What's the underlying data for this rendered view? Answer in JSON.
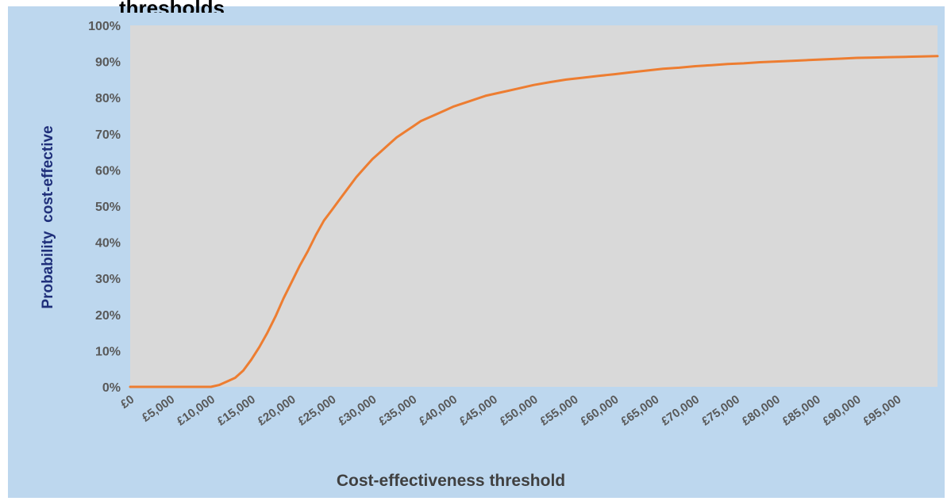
{
  "chart_data": {
    "type": "line",
    "title": "thresholds",
    "xlabel": "Cost-effectiveness threshold",
    "ylabel": "Probability  cost-effective",
    "xlim": [
      0,
      100000
    ],
    "ylim": [
      0,
      100
    ],
    "y_ticks": [
      "0%",
      "10%",
      "20%",
      "30%",
      "40%",
      "50%",
      "60%",
      "70%",
      "80%",
      "90%",
      "100%"
    ],
    "y_tick_values": [
      0,
      10,
      20,
      30,
      40,
      50,
      60,
      70,
      80,
      90,
      100
    ],
    "x_ticks": [
      "£0",
      "£5,000",
      "£10,000",
      "£15,000",
      "£20,000",
      "£25,000",
      "£30,000",
      "£35,000",
      "£40,000",
      "£45,000",
      "£50,000",
      "£55,000",
      "£60,000",
      "£65,000",
      "£70,000",
      "£75,000",
      "£80,000",
      "£85,000",
      "£90,000",
      "£95,000"
    ],
    "x_tick_values": [
      0,
      5000,
      10000,
      15000,
      20000,
      25000,
      30000,
      35000,
      40000,
      45000,
      50000,
      55000,
      60000,
      65000,
      70000,
      75000,
      80000,
      85000,
      90000,
      95000
    ],
    "grid": false,
    "legend": "none",
    "colors": {
      "line": "#ed7d31",
      "plot_bg": "#d9d9d9",
      "chart_bg": "#bdd7ee",
      "ylabel_color": "#1f2f7a",
      "tick_color": "#595959"
    },
    "series": [
      {
        "x": [
          0,
          2000,
          4000,
          6000,
          8000,
          10000,
          11000,
          12000,
          13000,
          14000,
          15000,
          16000,
          17000,
          18000,
          19000,
          20000,
          21000,
          22000,
          23000,
          24000,
          25000,
          26000,
          27000,
          28000,
          29000,
          30000,
          31000,
          32000,
          33000,
          34000,
          35000,
          36000,
          37000,
          38000,
          39000,
          40000,
          42000,
          44000,
          46000,
          48000,
          50000,
          52000,
          54000,
          56000,
          58000,
          60000,
          62000,
          64000,
          66000,
          68000,
          70000,
          72000,
          74000,
          76000,
          78000,
          80000,
          82000,
          84000,
          86000,
          88000,
          90000,
          92000,
          94000,
          96000,
          98000,
          100000
        ],
        "values": [
          0,
          0,
          0,
          0,
          0,
          0,
          0.5,
          1.5,
          2.5,
          4.5,
          7.5,
          11,
          15,
          19.5,
          24.5,
          29,
          33.5,
          37.5,
          42,
          46,
          49,
          52,
          55,
          58,
          60.5,
          63,
          65,
          67,
          69,
          70.5,
          72,
          73.5,
          74.5,
          75.5,
          76.5,
          77.5,
          79,
          80.5,
          81.5,
          82.5,
          83.5,
          84.3,
          85,
          85.5,
          86,
          86.5,
          87,
          87.5,
          88,
          88.3,
          88.7,
          89,
          89.3,
          89.5,
          89.8,
          90,
          90.2,
          90.4,
          90.6,
          90.8,
          91,
          91.1,
          91.2,
          91.3,
          91.4,
          91.5
        ]
      }
    ]
  }
}
